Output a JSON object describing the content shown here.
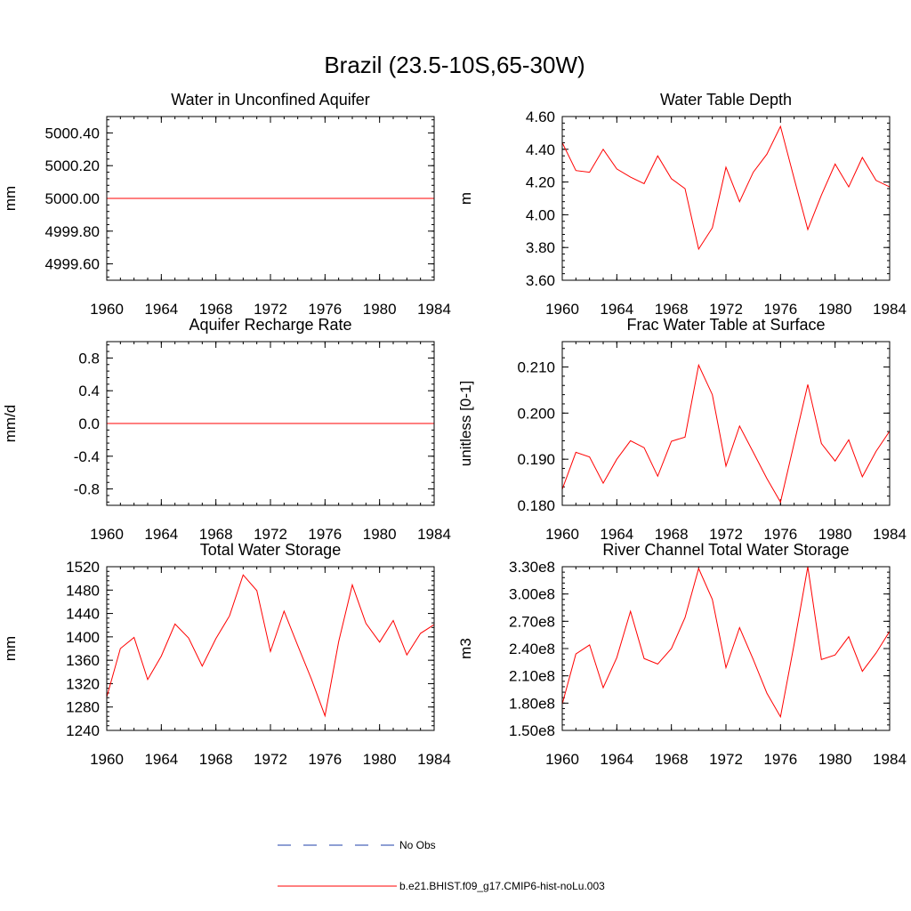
{
  "figure": {
    "title": "Brazil (23.5-10S,65-30W)"
  },
  "colors": {
    "series_line": "#ff0000",
    "obs_line": "#1e3fa8",
    "axis": "#000000"
  },
  "legend": {
    "entries": [
      {
        "label": "No Obs",
        "style": "dashed",
        "color": "#1e3fa8"
      },
      {
        "label": "b.e21.BHIST.f09_g17.CMIP6-hist-noLu.003",
        "style": "solid",
        "color": "#ff0000"
      }
    ]
  },
  "chart_data": [
    {
      "type": "line",
      "title": "Water in Unconfined Aquifer",
      "ylabel": "mm",
      "xlim": [
        1960,
        1984
      ],
      "ylim": [
        4999.5,
        5000.5
      ],
      "xticks": [
        "1960",
        "1964",
        "1968",
        "1972",
        "1976",
        "1980",
        "1984"
      ],
      "yticks": [
        {
          "v": 4999.6,
          "label": "4999.60"
        },
        {
          "v": 4999.8,
          "label": "4999.80"
        },
        {
          "v": 5000.0,
          "label": "5000.00"
        },
        {
          "v": 5000.2,
          "label": "5000.20"
        },
        {
          "v": 5000.4,
          "label": "5000.40"
        }
      ],
      "series": [
        {
          "name": "b.e21.BHIST.f09_g17.CMIP6-hist-noLu.003",
          "x": [
            1960,
            1961,
            1962,
            1963,
            1964,
            1965,
            1966,
            1967,
            1968,
            1969,
            1970,
            1971,
            1972,
            1973,
            1974,
            1975,
            1976,
            1977,
            1978,
            1979,
            1980,
            1981,
            1982,
            1983,
            1984
          ],
          "y": [
            5000,
            5000,
            5000,
            5000,
            5000,
            5000,
            5000,
            5000,
            5000,
            5000,
            5000,
            5000,
            5000,
            5000,
            5000,
            5000,
            5000,
            5000,
            5000,
            5000,
            5000,
            5000,
            5000,
            5000,
            5000
          ]
        }
      ]
    },
    {
      "type": "line",
      "title": "Water Table Depth",
      "ylabel": "m",
      "xlim": [
        1960,
        1984
      ],
      "ylim": [
        3.6,
        4.6
      ],
      "xticks": [
        "1960",
        "1964",
        "1968",
        "1972",
        "1976",
        "1980",
        "1984"
      ],
      "yticks": [
        {
          "v": 3.6,
          "label": "3.60"
        },
        {
          "v": 3.8,
          "label": "3.80"
        },
        {
          "v": 4.0,
          "label": "4.00"
        },
        {
          "v": 4.2,
          "label": "4.20"
        },
        {
          "v": 4.4,
          "label": "4.40"
        },
        {
          "v": 4.6,
          "label": "4.60"
        }
      ],
      "series": [
        {
          "name": "b.e21.BHIST.f09_g17.CMIP6-hist-noLu.003",
          "x": [
            1960,
            1961,
            1962,
            1963,
            1964,
            1965,
            1966,
            1967,
            1968,
            1969,
            1970,
            1971,
            1972,
            1973,
            1974,
            1975,
            1976,
            1977,
            1978,
            1979,
            1980,
            1981,
            1982,
            1983,
            1984
          ],
          "y": [
            4.44,
            4.27,
            4.26,
            4.4,
            4.28,
            4.23,
            4.19,
            4.36,
            4.22,
            4.16,
            3.79,
            3.92,
            4.29,
            4.08,
            4.26,
            4.37,
            4.54,
            4.22,
            3.91,
            4.12,
            4.31,
            4.17,
            4.35,
            4.21,
            4.17
          ]
        }
      ]
    },
    {
      "type": "line",
      "title": "Aquifer Recharge Rate",
      "ylabel": "mm/d",
      "xlim": [
        1960,
        1984
      ],
      "ylim": [
        -1.0,
        1.0
      ],
      "xticks": [
        "1960",
        "1964",
        "1968",
        "1972",
        "1976",
        "1980",
        "1984"
      ],
      "yticks": [
        {
          "v": -0.8,
          "label": "-0.8"
        },
        {
          "v": -0.4,
          "label": "-0.4"
        },
        {
          "v": 0.0,
          "label": "0.0"
        },
        {
          "v": 0.4,
          "label": "0.4"
        },
        {
          "v": 0.8,
          "label": "0.8"
        }
      ],
      "series": [
        {
          "name": "b.e21.BHIST.f09_g17.CMIP6-hist-noLu.003",
          "x": [
            1960,
            1961,
            1962,
            1963,
            1964,
            1965,
            1966,
            1967,
            1968,
            1969,
            1970,
            1971,
            1972,
            1973,
            1974,
            1975,
            1976,
            1977,
            1978,
            1979,
            1980,
            1981,
            1982,
            1983,
            1984
          ],
          "y": [
            0,
            0,
            0,
            0,
            0,
            0,
            0,
            0,
            0,
            0,
            0,
            0,
            0,
            0,
            0,
            0,
            0,
            0,
            0,
            0,
            0,
            0,
            0,
            0,
            0
          ]
        }
      ]
    },
    {
      "type": "line",
      "title": "Frac Water Table at Surface",
      "ylabel": "unitless [0-1]",
      "xlim": [
        1960,
        1984
      ],
      "ylim": [
        0.18,
        0.2155
      ],
      "xticks": [
        "1960",
        "1964",
        "1968",
        "1972",
        "1976",
        "1980",
        "1984"
      ],
      "yticks": [
        {
          "v": 0.18,
          "label": "0.180"
        },
        {
          "v": 0.19,
          "label": "0.190"
        },
        {
          "v": 0.2,
          "label": "0.200"
        },
        {
          "v": 0.21,
          "label": "0.210"
        }
      ],
      "series": [
        {
          "name": "b.e21.BHIST.f09_g17.CMIP6-hist-noLu.003",
          "x": [
            1960,
            1961,
            1962,
            1963,
            1964,
            1965,
            1966,
            1967,
            1968,
            1969,
            1970,
            1971,
            1972,
            1973,
            1974,
            1975,
            1976,
            1977,
            1978,
            1979,
            1980,
            1981,
            1982,
            1983,
            1984
          ],
          "y": [
            0.1835,
            0.1915,
            0.1905,
            0.1848,
            0.19,
            0.194,
            0.1925,
            0.1863,
            0.1939,
            0.1948,
            0.2104,
            0.204,
            0.1885,
            0.1972,
            0.1915,
            0.1858,
            0.1807,
            0.1935,
            0.2062,
            0.1934,
            0.1896,
            0.1942,
            0.1862,
            0.1917,
            0.1961
          ]
        }
      ]
    },
    {
      "type": "line",
      "title": "Total Water Storage",
      "ylabel": "mm",
      "xlim": [
        1960,
        1984
      ],
      "ylim": [
        1240,
        1520
      ],
      "xticks": [
        "1960",
        "1964",
        "1968",
        "1972",
        "1976",
        "1980",
        "1984"
      ],
      "yticks": [
        {
          "v": 1240,
          "label": "1240"
        },
        {
          "v": 1280,
          "label": "1280"
        },
        {
          "v": 1320,
          "label": "1320"
        },
        {
          "v": 1360,
          "label": "1360"
        },
        {
          "v": 1400,
          "label": "1400"
        },
        {
          "v": 1440,
          "label": "1440"
        },
        {
          "v": 1480,
          "label": "1480"
        },
        {
          "v": 1520,
          "label": "1520"
        }
      ],
      "series": [
        {
          "name": "b.e21.BHIST.f09_g17.CMIP6-hist-noLu.003",
          "x": [
            1960,
            1961,
            1962,
            1963,
            1964,
            1965,
            1966,
            1967,
            1968,
            1969,
            1970,
            1971,
            1972,
            1973,
            1974,
            1975,
            1976,
            1977,
            1978,
            1979,
            1980,
            1981,
            1982,
            1983,
            1984
          ],
          "y": [
            1297,
            1380,
            1399,
            1327,
            1367,
            1422,
            1398,
            1350,
            1397,
            1436,
            1506,
            1479,
            1375,
            1444,
            1385,
            1328,
            1265,
            1392,
            1489,
            1423,
            1391,
            1428,
            1369,
            1406,
            1421
          ]
        }
      ]
    },
    {
      "type": "line",
      "title": "River Channel Total Water Storage",
      "ylabel": "m3",
      "xlim": [
        1960,
        1984
      ],
      "ylim": [
        150000000,
        330000000
      ],
      "xticks": [
        "1960",
        "1964",
        "1968",
        "1972",
        "1976",
        "1980",
        "1984"
      ],
      "yticks": [
        {
          "v": 150000000,
          "label": "1.50e8"
        },
        {
          "v": 180000000,
          "label": "1.80e8"
        },
        {
          "v": 210000000,
          "label": "2.10e8"
        },
        {
          "v": 240000000,
          "label": "2.40e8"
        },
        {
          "v": 270000000,
          "label": "2.70e8"
        },
        {
          "v": 300000000,
          "label": "3.00e8"
        },
        {
          "v": 330000000,
          "label": "3.30e8"
        }
      ],
      "series": [
        {
          "name": "b.e21.BHIST.f09_g17.CMIP6-hist-noLu.003",
          "x": [
            1960,
            1961,
            1962,
            1963,
            1964,
            1965,
            1966,
            1967,
            1968,
            1969,
            1970,
            1971,
            1972,
            1973,
            1974,
            1975,
            1976,
            1977,
            1978,
            1979,
            1980,
            1981,
            1982,
            1983,
            1984
          ],
          "y": [
            179000000,
            234000000,
            244000000,
            197000000,
            230000000,
            281000000,
            229000000,
            223000000,
            240000000,
            274000000,
            328000000,
            294000000,
            219000000,
            263000000,
            228000000,
            191000000,
            165000000,
            245000000,
            330000000,
            228000000,
            233000000,
            253000000,
            215000000,
            235000000,
            259000000
          ]
        }
      ]
    }
  ]
}
